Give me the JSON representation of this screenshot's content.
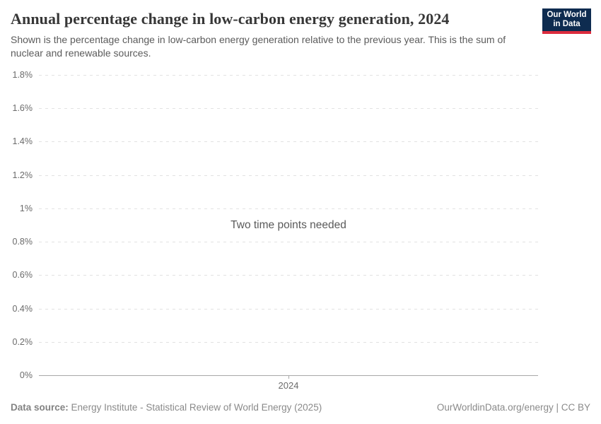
{
  "header": {
    "title": "Annual percentage change in low-carbon energy generation, 2024",
    "subtitle": "Shown is the percentage change in low-carbon energy generation relative to the previous year. This is the sum of nuclear and renewable sources.",
    "logo": {
      "line1": "Our World",
      "line2": "in Data"
    }
  },
  "chart_data": {
    "type": "line",
    "title": "Annual percentage change in low-carbon energy generation, 2024",
    "series": [],
    "message": "Two time points needed",
    "x_tick_labels": [
      "2024"
    ],
    "y_tick_labels": [
      "1.8%",
      "1.6%",
      "1.4%",
      "1.2%",
      "1%",
      "0.8%",
      "0.6%",
      "0.4%",
      "0.2%",
      "0%"
    ],
    "ylim": [
      0,
      1.8
    ],
    "xlabel": "",
    "ylabel": "",
    "grid": "horizontal-dashed",
    "legend": "none"
  },
  "colors": {
    "logo_background": "#0e2c50",
    "logo_accent": "#dc2c3e",
    "title_text": "#373737",
    "subtitle_text": "#5b5b5b",
    "tick_text": "#6b6b6b",
    "gridline": "#e2e2e2",
    "axis_line": "#a8a8a8",
    "footer_text": "#8a8a8a"
  },
  "footer": {
    "datasource_label": "Data source:",
    "datasource_value": "Energy Institute - Statistical Review of World Energy (2025)",
    "license": "OurWorldinData.org/energy | CC BY"
  }
}
